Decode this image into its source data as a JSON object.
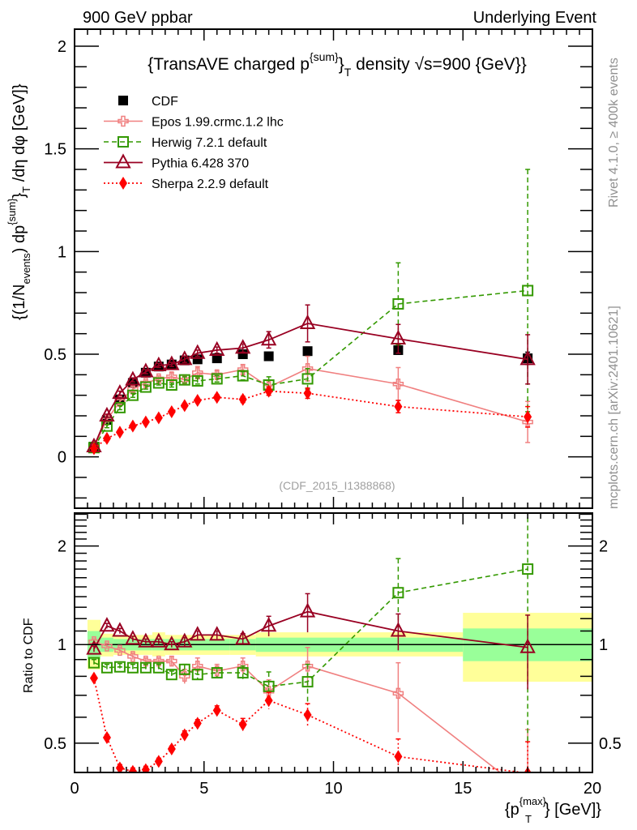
{
  "header": {
    "left": "900 GeV ppbar",
    "right": "Underlying Event"
  },
  "side_labels": {
    "rivet": "Rivet 4.1.0, ≥ 400k events",
    "mcplots": "mcplots.cern.ch [arXiv:2401.10621]"
  },
  "chart_data": [
    {
      "type": "line",
      "panel": "main",
      "title": "{TransAVE charged p^{sum}_T density √s=900 {GeV}}",
      "title_parts": {
        "pre": "{TransAVE charged p",
        "sup": "{sum}",
        "mid": "}",
        "sub": "T",
        "post": " density √s=900 {GeV}}"
      },
      "ylabel": "{(1/N_{events}) dp^{sum}_T /dη dφ [GeV]}",
      "ylabel_parts": {
        "a": "{(1/N",
        "a_sub": "events",
        "b": ") dp",
        "b_sup": "{sum}",
        "c": "}",
        "c_sub": "T",
        "d": " /dη  dφ [GeV]}"
      },
      "xlabel": "",
      "xlim": [
        0,
        20
      ],
      "ylim": [
        -0.25,
        2.083
      ],
      "yticks": [
        0,
        0.5,
        1,
        1.5,
        2
      ],
      "ytick_labels": [
        "0",
        "0.5",
        "1",
        "1.5",
        "2"
      ],
      "watermark": "(CDF_2015_I1388868)",
      "legend_position": "top-left",
      "x": [
        0.75,
        1.25,
        1.75,
        2.25,
        2.75,
        3.25,
        3.75,
        4.25,
        4.75,
        5.5,
        6.5,
        7.5,
        9,
        12.5,
        17.5
      ],
      "series": [
        {
          "name": "CDF",
          "color": "#000000",
          "marker": "square-filled",
          "line": "none",
          "values": [
            0.05,
            0.18,
            0.28,
            0.36,
            0.41,
            0.44,
            0.45,
            0.47,
            0.475,
            0.48,
            0.5,
            0.49,
            0.515,
            0.52,
            0.48
          ],
          "errors": [
            0.004,
            0.005,
            0.006,
            0.007,
            0.008,
            0.008,
            0.008,
            0.009,
            0.009,
            0.009,
            0.01,
            0.01,
            0.012,
            0.02,
            0.03
          ]
        },
        {
          "name": "Epos 1.99.crmc.1.2 lhc",
          "color": "#f08080",
          "marker": "cross-open",
          "line": "solid",
          "values": [
            0.05,
            0.18,
            0.27,
            0.33,
            0.36,
            0.38,
            0.39,
            0.375,
            0.41,
            0.4,
            0.425,
            0.34,
            0.43,
            0.355,
            0.17
          ],
          "errors": [
            0.005,
            0.01,
            0.015,
            0.015,
            0.015,
            0.015,
            0.02,
            0.02,
            0.03,
            0.02,
            0.025,
            0.03,
            0.06,
            0.08,
            0.1
          ]
        },
        {
          "name": "Herwig 7.2.1 default",
          "color": "#339900",
          "marker": "square-open",
          "line": "dashed",
          "values": [
            0.045,
            0.15,
            0.24,
            0.3,
            0.34,
            0.36,
            0.35,
            0.375,
            0.37,
            0.38,
            0.395,
            0.35,
            0.38,
            0.745,
            0.81
          ],
          "errors": [
            0.004,
            0.008,
            0.01,
            0.01,
            0.01,
            0.01,
            0.01,
            0.015,
            0.015,
            0.015,
            0.02,
            0.04,
            0.05,
            0.2,
            0.59
          ]
        },
        {
          "name": "Pythia 6.428 370",
          "color": "#990022",
          "marker": "triangle-open",
          "line": "solid",
          "values": [
            0.05,
            0.2,
            0.31,
            0.375,
            0.415,
            0.445,
            0.45,
            0.475,
            0.505,
            0.52,
            0.53,
            0.57,
            0.65,
            0.575,
            0.475
          ],
          "errors": [
            0.004,
            0.008,
            0.01,
            0.01,
            0.01,
            0.01,
            0.01,
            0.015,
            0.015,
            0.015,
            0.02,
            0.04,
            0.09,
            0.07,
            0.12
          ]
        },
        {
          "name": "Sherpa 2.2.9 default",
          "color": "#ff0000",
          "marker": "diamond-filled",
          "line": "dotted",
          "values": [
            0.04,
            0.09,
            0.12,
            0.15,
            0.17,
            0.19,
            0.22,
            0.25,
            0.275,
            0.29,
            0.28,
            0.32,
            0.31,
            0.245,
            0.195
          ],
          "errors": [
            0.003,
            0.005,
            0.006,
            0.006,
            0.007,
            0.008,
            0.008,
            0.01,
            0.01,
            0.012,
            0.015,
            0.02,
            0.025,
            0.03,
            0.05
          ]
        }
      ]
    },
    {
      "type": "line",
      "panel": "ratio",
      "ylabel": "Ratio to CDF",
      "xlabel": "{p_T^{max}} [GeV]}",
      "xlabel_parts": {
        "pre": "{p",
        "sup": "{max}",
        "sub": "T",
        "post": "} [GeV]}"
      },
      "xlim": [
        0,
        20
      ],
      "xticks": [
        0,
        5,
        10,
        15,
        20
      ],
      "xtick_labels": [
        "0",
        "5",
        "10",
        "15",
        "20"
      ],
      "ylim": [
        0.407,
        2.52
      ],
      "yscale": "log",
      "yticks": [
        0.5,
        1,
        2
      ],
      "ytick_labels": [
        "0.5",
        "1",
        "2"
      ],
      "reference_line": 1,
      "uncertainty_bands": [
        {
          "x0": 0.5,
          "x1": 1.0,
          "green": [
            0.9,
            1.1
          ],
          "yellow": [
            0.84,
            1.19
          ]
        },
        {
          "x0": 1.0,
          "x1": 1.5,
          "green": [
            0.95,
            1.05
          ],
          "yellow": [
            0.92,
            1.08
          ]
        },
        {
          "x0": 1.5,
          "x1": 3.0,
          "green": [
            0.96,
            1.04
          ],
          "yellow": [
            0.93,
            1.07
          ]
        },
        {
          "x0": 3.0,
          "x1": 3.5,
          "green": [
            0.96,
            1.04
          ],
          "yellow": [
            0.92,
            1.09
          ]
        },
        {
          "x0": 3.5,
          "x1": 6.0,
          "green": [
            0.96,
            1.04
          ],
          "yellow": [
            0.93,
            1.07
          ]
        },
        {
          "x0": 6.0,
          "x1": 7.0,
          "green": [
            0.96,
            1.04
          ],
          "yellow": [
            0.93,
            1.07
          ]
        },
        {
          "x0": 7.0,
          "x1": 15.0,
          "green": [
            0.95,
            1.05
          ],
          "yellow": [
            0.92,
            1.09
          ]
        },
        {
          "x0": 15.0,
          "x1": 20.0,
          "green": [
            0.89,
            1.12
          ],
          "yellow": [
            0.77,
            1.25
          ]
        }
      ],
      "x": [
        0.75,
        1.25,
        1.75,
        2.25,
        2.75,
        3.25,
        3.75,
        4.25,
        4.75,
        5.5,
        6.5,
        7.5,
        9,
        12.5,
        17.5
      ],
      "series": [
        {
          "name": "Epos 1.99.crmc.1.2 lhc",
          "values": [
            1.02,
            0.99,
            0.96,
            0.92,
            0.89,
            0.89,
            0.89,
            0.8,
            0.86,
            0.83,
            0.86,
            0.72,
            0.86,
            0.71,
            0.35
          ],
          "errors": [
            0.02,
            0.02,
            0.02,
            0.02,
            0.02,
            0.02,
            0.03,
            0.04,
            0.05,
            0.04,
            0.05,
            0.06,
            0.12,
            0.17,
            0.2
          ]
        },
        {
          "name": "Herwig 7.2.1 default",
          "values": [
            0.88,
            0.85,
            0.855,
            0.85,
            0.85,
            0.85,
            0.81,
            0.84,
            0.81,
            0.82,
            0.82,
            0.745,
            0.77,
            1.44,
            1.7
          ],
          "errors": [
            0.02,
            0.02,
            0.02,
            0.02,
            0.02,
            0.02,
            0.02,
            0.03,
            0.03,
            0.03,
            0.04,
            0.08,
            0.1,
            0.39,
            1.2
          ]
        },
        {
          "name": "Pythia 6.428 370",
          "values": [
            0.97,
            1.14,
            1.1,
            1.04,
            1.02,
            1.02,
            1.0,
            1.02,
            1.07,
            1.07,
            1.04,
            1.14,
            1.26,
            1.1,
            0.98
          ],
          "errors": [
            0.02,
            0.02,
            0.02,
            0.02,
            0.02,
            0.02,
            0.02,
            0.03,
            0.03,
            0.03,
            0.04,
            0.08,
            0.17,
            0.14,
            0.25
          ]
        },
        {
          "name": "Sherpa 2.2.9 default",
          "values": [
            0.79,
            0.52,
            0.42,
            0.41,
            0.415,
            0.44,
            0.48,
            0.53,
            0.575,
            0.63,
            0.57,
            0.675,
            0.61,
            0.455,
            0.405
          ],
          "errors": [
            0.01,
            0.01,
            0.01,
            0.01,
            0.01,
            0.01,
            0.01,
            0.015,
            0.015,
            0.02,
            0.025,
            0.04,
            0.05,
            0.06,
            0.1
          ]
        }
      ]
    }
  ]
}
